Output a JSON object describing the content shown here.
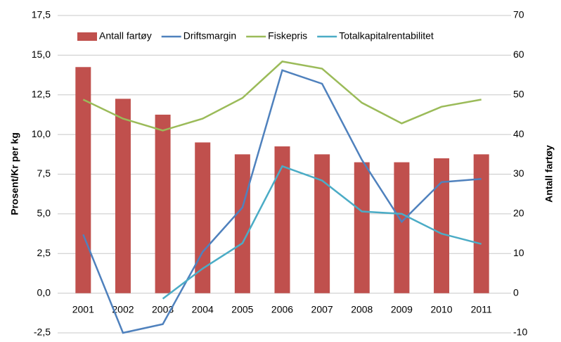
{
  "chart_data": {
    "type": "combo",
    "categories": [
      "2001",
      "2002",
      "2003",
      "2004",
      "2005",
      "2006",
      "2007",
      "2008",
      "2009",
      "2010",
      "2011"
    ],
    "series": [
      {
        "name": "Antall fartøy",
        "type": "bar",
        "axis": "y2",
        "color": "#c0504d",
        "values": [
          57,
          49,
          45,
          38,
          35,
          37,
          35,
          33,
          33,
          34,
          35
        ]
      },
      {
        "name": "Driftsmargin",
        "type": "line",
        "color": "#4f81bd",
        "values": [
          3.7,
          -2.5,
          -1.95,
          2.6,
          5.4,
          14.05,
          13.2,
          8.4,
          4.5,
          7.0,
          7.2
        ]
      },
      {
        "name": "Fiskepris",
        "type": "line",
        "color": "#9bbb59",
        "values": [
          12.2,
          11.0,
          10.25,
          11.0,
          12.3,
          14.6,
          14.15,
          12.0,
          10.7,
          11.75,
          12.2
        ]
      },
      {
        "name": "Totalkapitalrentabilitet",
        "type": "line",
        "color": "#4bacc6",
        "values": [
          null,
          null,
          -0.35,
          1.55,
          3.15,
          8.0,
          7.1,
          5.15,
          5.0,
          3.75,
          3.1
        ]
      }
    ],
    "y_label": "Prosent/Kr per kg",
    "y2_label": "Antall fartøy",
    "ylim": [
      -2.5,
      17.5
    ],
    "yticks": [
      {
        "value": -2.5,
        "label": "-2,5"
      },
      {
        "value": 0,
        "label": "0,0"
      },
      {
        "value": 2.5,
        "label": "2,5"
      },
      {
        "value": 5,
        "label": "5,0"
      },
      {
        "value": 7.5,
        "label": "7,5"
      },
      {
        "value": 10,
        "label": "10,0"
      },
      {
        "value": 12.5,
        "label": "12,5"
      },
      {
        "value": 15,
        "label": "15,0"
      },
      {
        "value": 17.5,
        "label": "17,5"
      }
    ],
    "y2lim": [
      -10,
      70
    ],
    "y2ticks": [
      -10,
      0,
      10,
      20,
      30,
      40,
      50,
      60,
      70
    ],
    "grid": true
  }
}
